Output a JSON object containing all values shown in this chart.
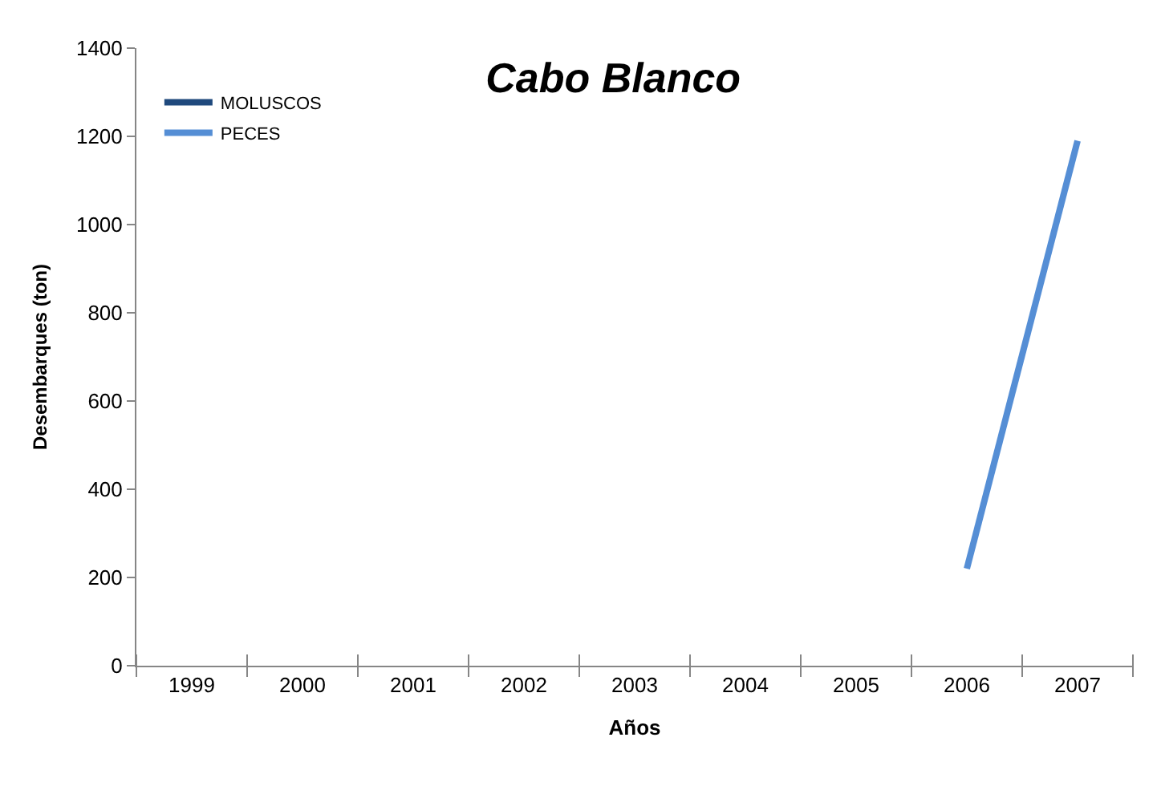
{
  "chart_data": {
    "type": "line",
    "title": "Cabo Blanco",
    "xlabel": "Años",
    "ylabel": "Desembarques (ton)",
    "categories": [
      "1999",
      "2000",
      "2001",
      "2002",
      "2003",
      "2004",
      "2005",
      "2006",
      "2007"
    ],
    "series": [
      {
        "name": "MOLUSCOS",
        "color": "#1f497d",
        "values": [
          null,
          null,
          null,
          null,
          null,
          null,
          null,
          null,
          null
        ]
      },
      {
        "name": "PECES",
        "color": "#558ed5",
        "values": [
          null,
          null,
          null,
          null,
          null,
          null,
          null,
          220,
          1190
        ]
      }
    ],
    "ylim": [
      0,
      1400
    ],
    "yticks": [
      0,
      200,
      400,
      600,
      800,
      1000,
      1200,
      1400
    ],
    "legend": "top left",
    "marker": "none",
    "line_style": "solid"
  }
}
